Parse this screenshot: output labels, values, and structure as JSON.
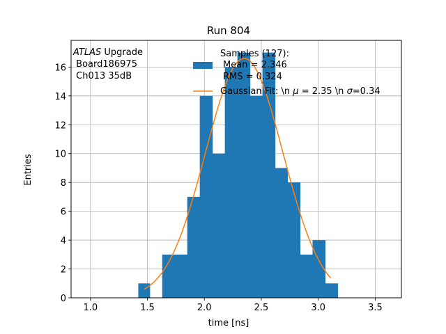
{
  "chart_data": {
    "type": "bar",
    "title": "Run 804",
    "xlabel": "time [ns]",
    "ylabel": "Entries",
    "xlim": [
      0.83,
      3.73
    ],
    "ylim": [
      0,
      17.85
    ],
    "xticks": [
      "1.0",
      "1.5",
      "2.0",
      "2.5",
      "3.0",
      "3.5"
    ],
    "yticks": [
      "0",
      "2",
      "4",
      "6",
      "8",
      "10",
      "12",
      "14",
      "16"
    ],
    "grid": true,
    "bar_color": "#1f77b4",
    "fit_color": "#ff7f0e",
    "bins": [
      {
        "x0": 1.42,
        "x1": 1.52,
        "count": 1
      },
      {
        "x0": 1.52,
        "x1": 1.63,
        "count": 0
      },
      {
        "x0": 1.63,
        "x1": 1.74,
        "count": 3
      },
      {
        "x0": 1.74,
        "x1": 1.85,
        "count": 3
      },
      {
        "x0": 1.85,
        "x1": 1.96,
        "count": 7
      },
      {
        "x0": 1.96,
        "x1": 2.07,
        "count": 14
      },
      {
        "x0": 2.07,
        "x1": 2.18,
        "count": 10
      },
      {
        "x0": 2.18,
        "x1": 2.29,
        "count": 16
      },
      {
        "x0": 2.29,
        "x1": 2.4,
        "count": 17
      },
      {
        "x0": 2.4,
        "x1": 2.51,
        "count": 14
      },
      {
        "x0": 2.51,
        "x1": 2.62,
        "count": 17
      },
      {
        "x0": 2.62,
        "x1": 2.73,
        "count": 9
      },
      {
        "x0": 2.73,
        "x1": 2.84,
        "count": 8
      },
      {
        "x0": 2.84,
        "x1": 2.95,
        "count": 3
      },
      {
        "x0": 2.95,
        "x1": 3.06,
        "count": 4
      },
      {
        "x0": 3.06,
        "x1": 3.17,
        "count": 1
      }
    ],
    "fit": {
      "mu": 2.35,
      "sigma": 0.34,
      "amplitude": 16.6,
      "x_range": [
        1.47,
        3.11
      ]
    },
    "annotation": {
      "experiment": "ATLAS",
      "experiment_suffix": " Upgrade",
      "line2": " Board186975",
      "line3": " Ch013 35dB"
    },
    "legend": {
      "placement": "top-right",
      "samples_line1": "Samples (127):",
      "samples_line2": "Mean = 2.346",
      "samples_line3": "RMS = 0.324",
      "fit_prefix": "Gaussian Fit: \\n ",
      "fit_mu_symbol": "μ",
      "fit_mid": " = 2.35 \\n ",
      "fit_sigma_symbol": "σ",
      "fit_suffix": "=0.34"
    }
  }
}
